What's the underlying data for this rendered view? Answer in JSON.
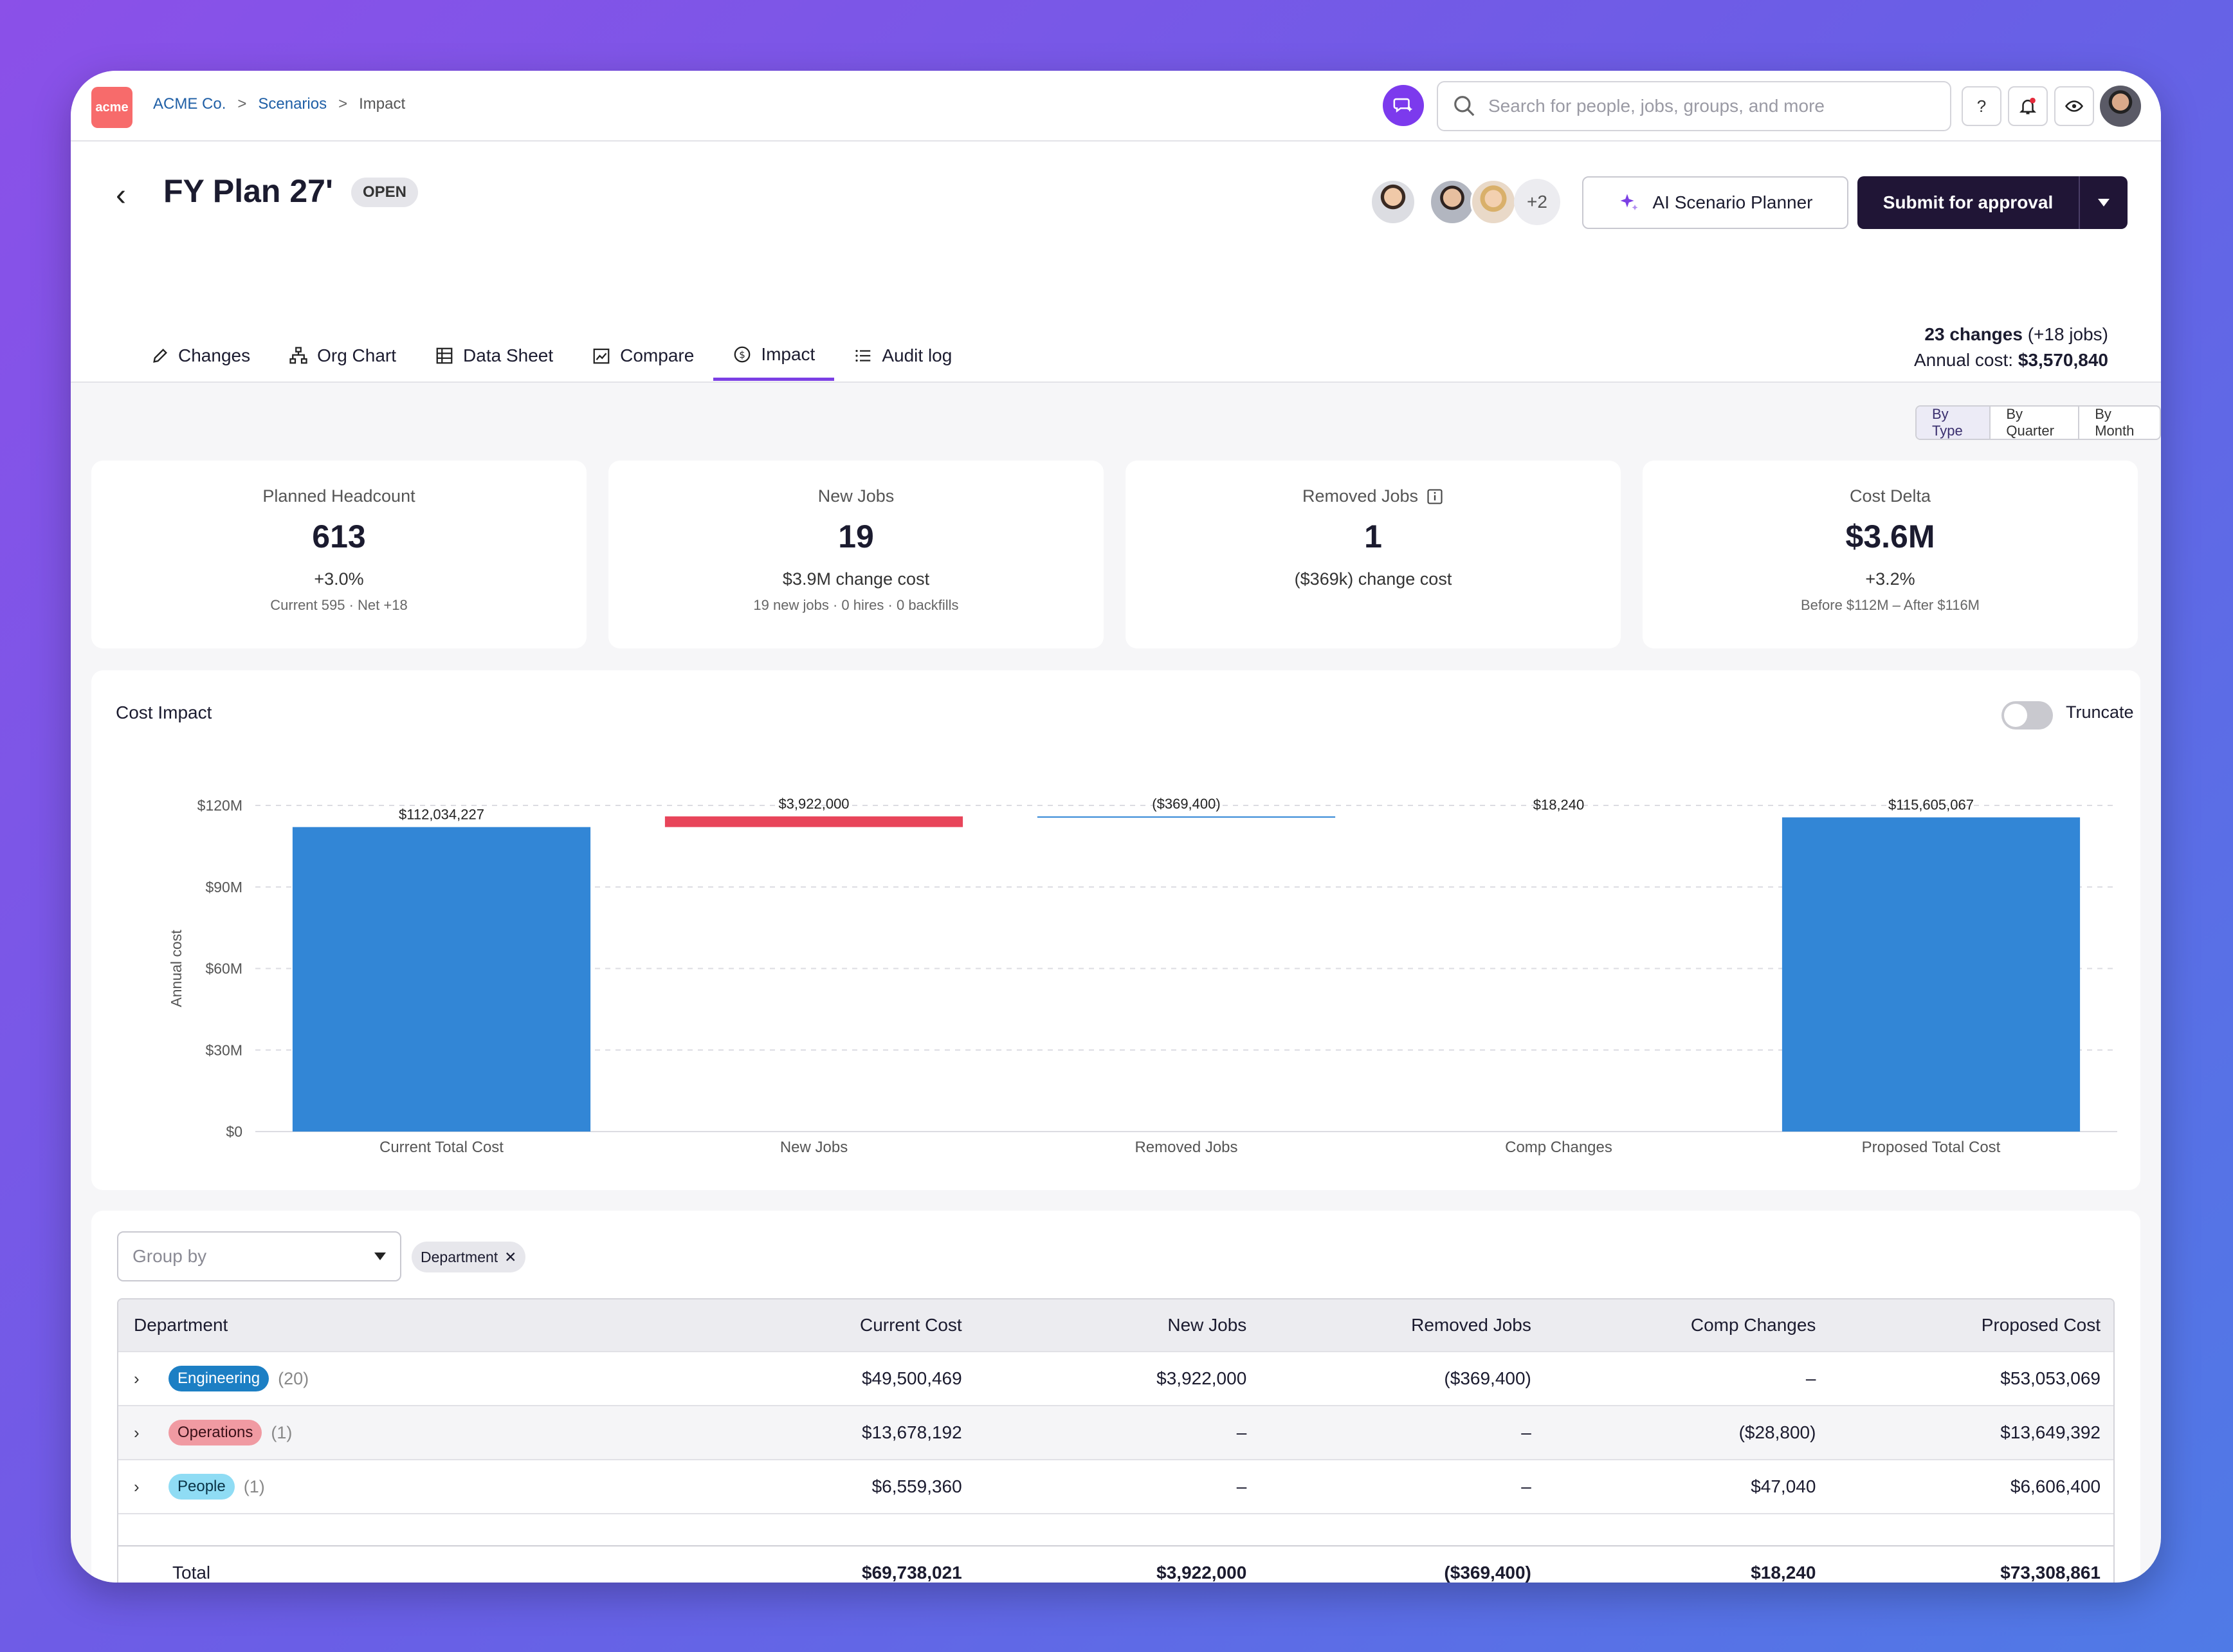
{
  "breadcrumb": {
    "logo": "acme",
    "org": "ACME Co.",
    "section": "Scenarios",
    "current": "Impact"
  },
  "search": {
    "placeholder": "Search for people, jobs, groups, and more"
  },
  "top_actions": {
    "help": "?"
  },
  "plan": {
    "title": "FY Plan 27'",
    "status": "OPEN",
    "collaborators_more": "+2"
  },
  "buttons": {
    "ai_planner": "AI Scenario Planner",
    "submit": "Submit for approval"
  },
  "tabs": [
    {
      "label": "Changes",
      "icon": "pencil-icon"
    },
    {
      "label": "Org Chart",
      "icon": "org-chart-icon"
    },
    {
      "label": "Data Sheet",
      "icon": "table-icon"
    },
    {
      "label": "Compare",
      "icon": "compare-icon"
    },
    {
      "label": "Impact",
      "icon": "dollar-icon",
      "active": true
    },
    {
      "label": "Audit log",
      "icon": "list-icon"
    }
  ],
  "summary": {
    "changes": "23 changes",
    "jobs": "(+18 jobs)",
    "cost_label": "Annual cost:",
    "cost": "$3,570,840"
  },
  "view_toggle": {
    "options": [
      "By Type",
      "By Quarter",
      "By Month"
    ],
    "selected": "By Type"
  },
  "cards": [
    {
      "label": "Planned Headcount",
      "value": "613",
      "sub": "+3.0%",
      "detail": "Current 595 · Net +18"
    },
    {
      "label": "New Jobs",
      "value": "19",
      "sub": "$3.9M change cost",
      "detail": "19 new jobs · 0 hires · 0 backfills"
    },
    {
      "label": "Removed Jobs",
      "value": "1",
      "sub": "($369k) change cost",
      "detail": ""
    },
    {
      "label": "Cost Delta",
      "value": "$3.6M",
      "sub": "+3.2%",
      "detail": "Before $112M – After $116M"
    }
  ],
  "chart_panel": {
    "title": "Cost Impact",
    "truncate_label": "Truncate",
    "truncate_on": false
  },
  "chart_data": {
    "type": "bar",
    "subtype": "waterfall",
    "ylabel": "Annual cost",
    "ylim": [
      0,
      120000000
    ],
    "yticks": [
      "$0",
      "$30M",
      "$60M",
      "$90M",
      "$120M"
    ],
    "categories": [
      "Current Total Cost",
      "New Jobs",
      "Removed Jobs",
      "Comp Changes",
      "Proposed Total Cost"
    ],
    "values": [
      112034227,
      3922000,
      -369400,
      18240,
      115605067
    ],
    "labels": [
      "$112,034,227",
      "$3,922,000",
      "($369,400)",
      "$18,240",
      "$115,605,067"
    ],
    "colors": [
      "#3286d6",
      "#e8455a",
      "#3286d6",
      "#3286d6",
      "#3286d6"
    ],
    "grid": true
  },
  "table": {
    "groupby_placeholder": "Group by",
    "chip": "Department",
    "columns": [
      "Department",
      "Current Cost",
      "New Jobs",
      "Removed Jobs",
      "Comp Changes",
      "Proposed Cost"
    ],
    "rows": [
      {
        "dept": "Engineering",
        "count": "(20)",
        "current": "$49,500,469",
        "new": "$3,922,000",
        "removed": "($369,400)",
        "comp": "–",
        "proposed": "$53,053,069"
      },
      {
        "dept": "Operations",
        "count": "(1)",
        "current": "$13,678,192",
        "new": "–",
        "removed": "–",
        "comp": "($28,800)",
        "proposed": "$13,649,392"
      },
      {
        "dept": "People",
        "count": "(1)",
        "current": "$6,559,360",
        "new": "–",
        "removed": "–",
        "comp": "$47,040",
        "proposed": "$6,606,400"
      }
    ],
    "total": {
      "label": "Total",
      "current": "$69,738,021",
      "new": "$3,922,000",
      "removed": "($369,400)",
      "comp": "$18,240",
      "proposed": "$73,308,861"
    }
  }
}
